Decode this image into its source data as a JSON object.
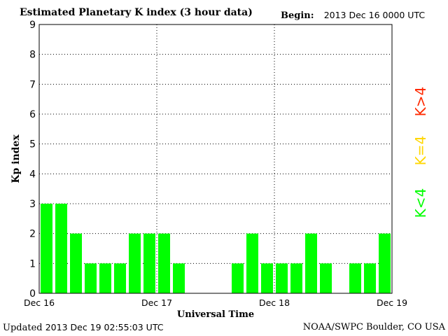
{
  "header": {
    "title": "Estimated Planetary K index (3 hour data)",
    "begin_label": "Begin:",
    "begin_value": "2013 Dec 16 0000 UTC"
  },
  "footer": {
    "updated_label": "Updated",
    "updated_value": "2013 Dec 19 02:55:03 UTC",
    "credit": "NOAA/SWPC Boulder, CO USA"
  },
  "colors": {
    "green": "#00ff00",
    "yellow": "#ffd700",
    "red": "#ff2a00"
  },
  "chart_data": {
    "type": "bar",
    "title": "Estimated Planetary K index (3 hour data)",
    "xlabel": "Universal Time",
    "ylabel": "Kp index",
    "ylim": [
      0,
      9
    ],
    "yticks": [
      "0",
      "1",
      "2",
      "3",
      "4",
      "5",
      "6",
      "7",
      "8",
      "9"
    ],
    "x_tick_labels": [
      "Dec 16",
      "Dec 17",
      "Dec 18",
      "Dec 19"
    ],
    "grid": true,
    "legend": {
      "placement": "right",
      "entries": [
        {
          "label": "K<4",
          "color": "green"
        },
        {
          "label": "K=4",
          "color": "yellow"
        },
        {
          "label": "K>4",
          "color": "red"
        }
      ]
    },
    "bars_per_day": 8,
    "values": [
      3,
      3,
      2,
      1,
      1,
      1,
      2,
      2,
      2,
      1,
      null,
      null,
      null,
      1,
      2,
      1,
      1,
      1,
      2,
      1,
      null,
      1,
      1,
      2
    ]
  }
}
